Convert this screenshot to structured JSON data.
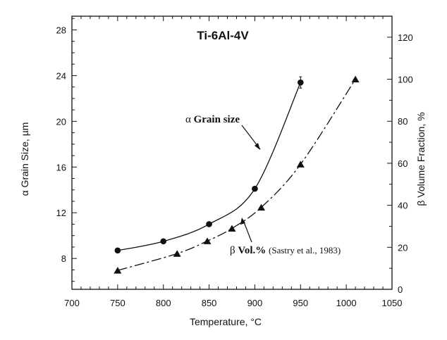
{
  "chart_data": {
    "type": "line",
    "title": "Ti-6Al-4V",
    "xlabel": "Temperature, °C",
    "ylabel_left": "α Grain Size, µm",
    "ylabel_right": "β Volume Fraction, %",
    "xlim": [
      700,
      1050
    ],
    "ylim_left": [
      5.3,
      29.2
    ],
    "ylim_right": [
      0,
      130
    ],
    "x_ticks": [
      "700",
      "750",
      "800",
      "850",
      "900",
      "950",
      "1000",
      "1050"
    ],
    "y_left_ticks": [
      "8",
      "12",
      "16",
      "20",
      "24",
      "28"
    ],
    "y_right_ticks": [
      "0",
      "20",
      "40",
      "60",
      "80",
      "100",
      "120"
    ],
    "grid": false,
    "series": [
      {
        "axis": "left",
        "marker": "circle",
        "line": "solid",
        "x": [
          750,
          800,
          850,
          900,
          950
        ],
        "y": [
          8.7,
          9.5,
          11.0,
          14.1,
          23.4
        ]
      },
      {
        "axis": "right",
        "marker": "triangle",
        "line": "dash-dot",
        "x": [
          750,
          815,
          848,
          875,
          907,
          950,
          1010
        ],
        "y": [
          9,
          17,
          23,
          29,
          39,
          59.5,
          100
        ]
      }
    ],
    "annotations": {
      "alpha_symbol": "α",
      "alpha_label": "Grain size",
      "beta_symbol": "β",
      "beta_label": "Vol.%",
      "beta_source": "(Sastry et al., 1983)"
    }
  }
}
